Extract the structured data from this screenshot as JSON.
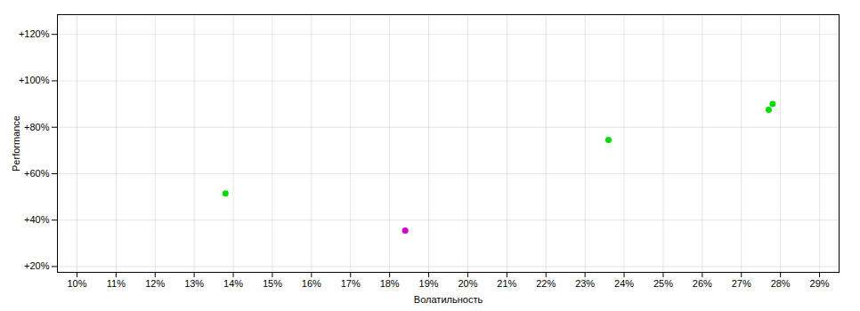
{
  "chart_data": {
    "type": "scatter",
    "xlabel": "Волатильность",
    "ylabel": "Performance",
    "x": [
      0.138,
      0.184,
      0.236,
      0.277,
      0.278
    ],
    "values": [
      0.515,
      0.355,
      0.745,
      0.875,
      0.9
    ],
    "colors": [
      "#00dd00",
      "#cc00cc",
      "#00dd00",
      "#00dd00",
      "#00dd00"
    ],
    "xlim": [
      0.095,
      0.295
    ],
    "ylim": [
      0.175,
      1.285
    ],
    "xticks": [
      {
        "value": 0.1,
        "label": "10%"
      },
      {
        "value": 0.11,
        "label": "11%"
      },
      {
        "value": 0.12,
        "label": "12%"
      },
      {
        "value": 0.13,
        "label": "13%"
      },
      {
        "value": 0.14,
        "label": "14%"
      },
      {
        "value": 0.15,
        "label": "15%"
      },
      {
        "value": 0.16,
        "label": "16%"
      },
      {
        "value": 0.17,
        "label": "17%"
      },
      {
        "value": 0.18,
        "label": "18%"
      },
      {
        "value": 0.19,
        "label": "19%"
      },
      {
        "value": 0.2,
        "label": "20%"
      },
      {
        "value": 0.21,
        "label": "21%"
      },
      {
        "value": 0.22,
        "label": "22%"
      },
      {
        "value": 0.23,
        "label": "23%"
      },
      {
        "value": 0.24,
        "label": "24%"
      },
      {
        "value": 0.25,
        "label": "25%"
      },
      {
        "value": 0.26,
        "label": "26%"
      },
      {
        "value": 0.27,
        "label": "27%"
      },
      {
        "value": 0.28,
        "label": "28%"
      },
      {
        "value": 0.29,
        "label": "29%"
      }
    ],
    "yticks": [
      {
        "value": 0.2,
        "label": "+20%"
      },
      {
        "value": 0.4,
        "label": "+40%"
      },
      {
        "value": 0.6,
        "label": "+60%"
      },
      {
        "value": 0.8,
        "label": "+80%"
      },
      {
        "value": 1.0,
        "label": "+100%"
      },
      {
        "value": 1.2,
        "label": "+120%"
      }
    ],
    "grid": true
  }
}
